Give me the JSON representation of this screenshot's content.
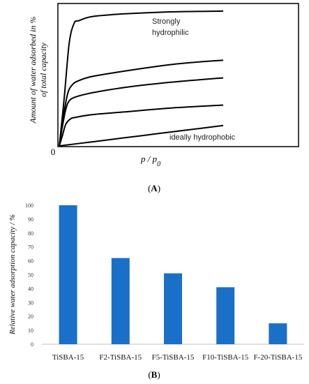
{
  "panels": [
    {
      "label_text": "(A)",
      "letter": "A"
    },
    {
      "label_text": "(B)",
      "letter": "B"
    }
  ],
  "chart_data": [
    {
      "type": "line",
      "panel": "A",
      "xlabel": "p / p0",
      "ylabel_lines": [
        "Amount of water adsorbed in %",
        "of total capacity"
      ],
      "origin_label": "0",
      "x_range": [
        0,
        1
      ],
      "y_range": [
        0,
        1
      ],
      "grid": false,
      "series": [
        {
          "x": [
            0,
            0.03,
            0.06,
            0.09,
            0.12,
            0.2,
            0.4,
            0.7,
            1.0
          ],
          "y": [
            0,
            0.35,
            0.75,
            0.9,
            0.92,
            0.95,
            0.97,
            0.985,
            0.99
          ]
        },
        {
          "x": [
            0,
            0.02,
            0.05,
            0.08,
            0.12,
            0.2,
            0.4,
            0.7,
            1.0
          ],
          "y": [
            0,
            0.18,
            0.38,
            0.45,
            0.48,
            0.51,
            0.55,
            0.6,
            0.63
          ]
        },
        {
          "x": [
            0,
            0.02,
            0.04,
            0.06,
            0.1,
            0.2,
            0.4,
            0.7,
            1.0
          ],
          "y": [
            0,
            0.15,
            0.27,
            0.33,
            0.36,
            0.39,
            0.43,
            0.47,
            0.5
          ]
        },
        {
          "x": [
            0,
            0.02,
            0.04,
            0.07,
            0.1,
            0.2,
            0.4,
            0.7,
            1.0
          ],
          "y": [
            0,
            0.08,
            0.16,
            0.2,
            0.21,
            0.23,
            0.25,
            0.28,
            0.3
          ]
        },
        {
          "x": [
            0,
            0.2,
            0.4,
            0.6,
            0.8,
            1.0
          ],
          "y": [
            0,
            0.03,
            0.06,
            0.09,
            0.12,
            0.15
          ]
        }
      ],
      "annotations": {
        "strong_line1": "Strongly",
        "strong_line2": "hydrophilic",
        "ideal": "ideally hydrophobic"
      }
    },
    {
      "type": "bar",
      "panel": "B",
      "categories": [
        "TiSBA-15",
        "F2-TiSBA-15",
        "F5-TiSBA-15",
        "F10-TiSBA-15",
        "F-20-TiSBA-15"
      ],
      "values": [
        100,
        62,
        51,
        41,
        15
      ],
      "ylabel": "Relative water adsorption capacity / %",
      "ylim": [
        0,
        100
      ],
      "yticks": [
        0,
        10,
        20,
        30,
        40,
        50,
        60,
        70,
        80,
        90,
        100
      ],
      "grid": false,
      "bar_color": "#1a6fc9"
    }
  ]
}
